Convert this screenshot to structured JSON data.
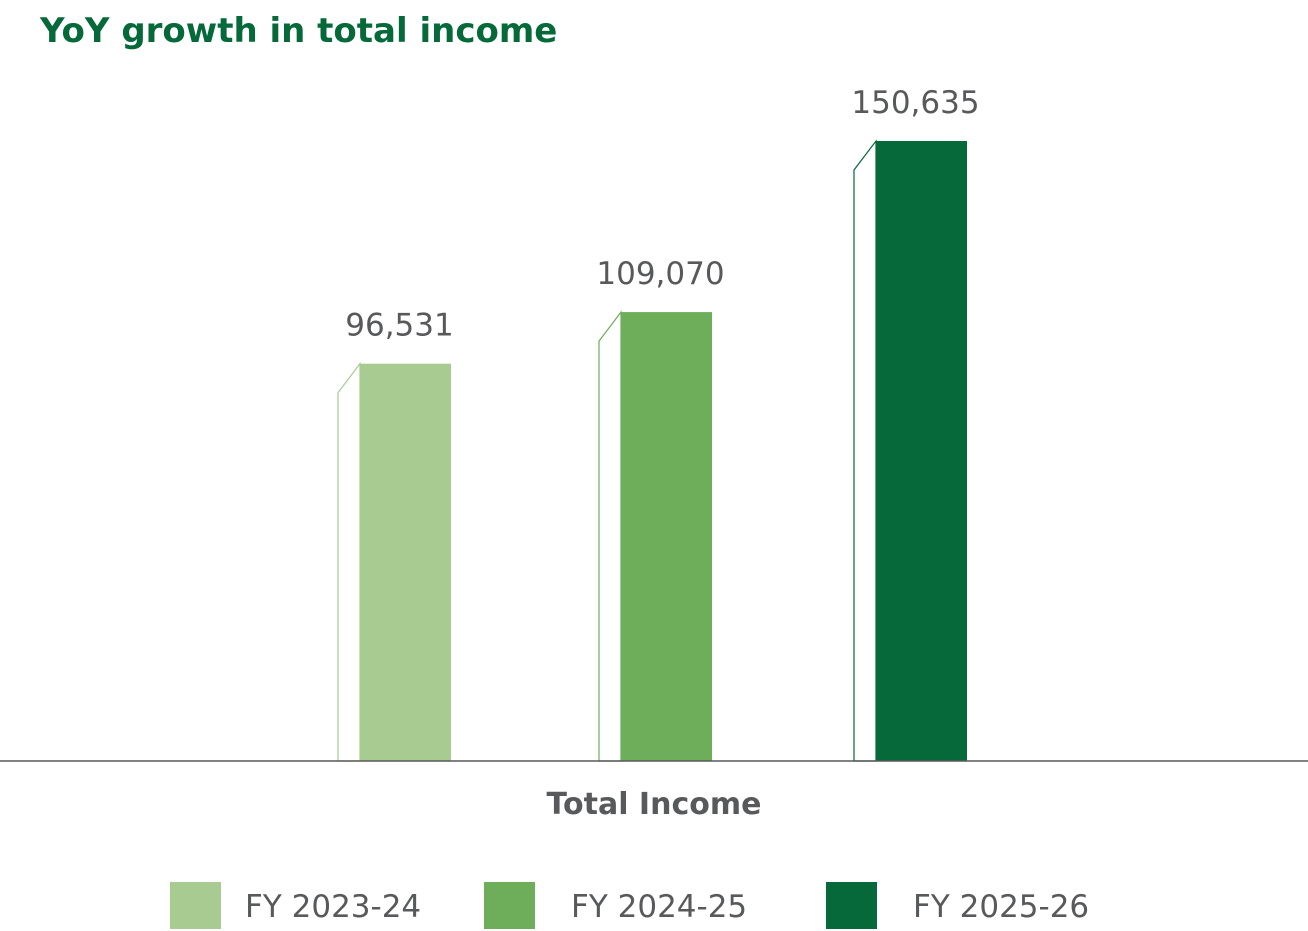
{
  "chart_data": {
    "type": "bar",
    "title": "YoY growth in total income",
    "categories": [
      "Total Income"
    ],
    "series": [
      {
        "name": "FY 2023-24",
        "values": [
          96531
        ],
        "label": "96,531",
        "color": "#a8cb91"
      },
      {
        "name": "FY 2024-25",
        "values": [
          109070
        ],
        "label": "109,070",
        "color": "#6eae5b"
      },
      {
        "name": "FY 2025-26",
        "values": [
          150635
        ],
        "label": "150,635",
        "color": "#05693a"
      }
    ],
    "xlabel": "",
    "ylabel": "",
    "ylim": [
      0,
      150635
    ],
    "grid": false,
    "legend": "bottom",
    "colors": {
      "title": "#05693a",
      "text": "#58595b",
      "axis": "#58595b"
    }
  }
}
